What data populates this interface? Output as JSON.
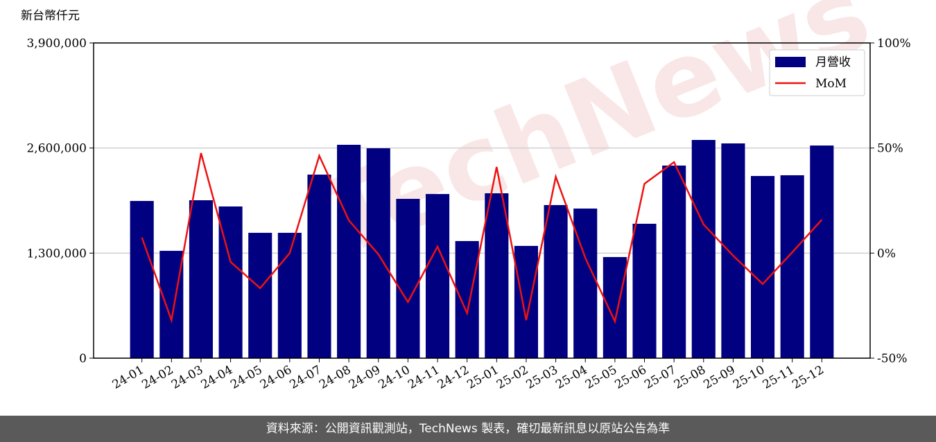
{
  "chart_data": {
    "type": "bar_line",
    "y_label": "新台幣仟元",
    "watermark": "TechNews",
    "footer": "資料來源：公開資訊觀測站，TechNews 製表，確切最新訊息以原站公告為準",
    "categories": [
      "24-01",
      "24-02",
      "24-03",
      "24-04",
      "24-05",
      "24-06",
      "24-07",
      "24-08",
      "24-09",
      "24-10",
      "24-11",
      "24-12",
      "25-01",
      "25-02",
      "25-03",
      "25-04",
      "25-05",
      "25-06",
      "25-07",
      "25-08",
      "25-09",
      "25-10",
      "25-11",
      "25-12"
    ],
    "series": [
      {
        "name": "月營收",
        "type": "bar",
        "color": "#000080",
        "values": [
          1945000,
          1328000,
          1954000,
          1877000,
          1551000,
          1551000,
          2271000,
          2640000,
          2597000,
          1971000,
          2031000,
          1449000,
          2040000,
          1389000,
          1894000,
          1851000,
          1251000,
          1663000,
          2383000,
          2700000,
          2657000,
          2254000,
          2263000,
          2631000
        ]
      },
      {
        "name": "MoM",
        "type": "line",
        "color": "#ee1111",
        "axis": "y2",
        "values": [
          7.4,
          -31.9,
          47.6,
          -4.2,
          -16.7,
          0.0,
          46.3,
          15.6,
          -0.6,
          -23.3,
          3.1,
          -28.6,
          41.0,
          -31.9,
          36.3,
          -2.3,
          -32.5,
          33.0,
          43.3,
          13.6,
          -1.2,
          -14.7,
          0.4,
          15.9
        ]
      }
    ],
    "ylim": [
      0,
      3900000
    ],
    "yticks": [
      0,
      {
        "value": 1300000,
        "label": "1,300,000"
      },
      {
        "value": 2600000,
        "label": "2,600,000"
      },
      {
        "value": 3900000,
        "label": "3,900,000"
      }
    ],
    "y2lim": [
      -50,
      100
    ],
    "y2ticks": [
      {
        "value": -50,
        "label": "-50%"
      },
      {
        "value": 0,
        "label": "0%"
      },
      {
        "value": 50,
        "label": "50%"
      },
      {
        "value": 100,
        "label": "100%"
      }
    ],
    "grid": true,
    "legend": "upper right"
  }
}
